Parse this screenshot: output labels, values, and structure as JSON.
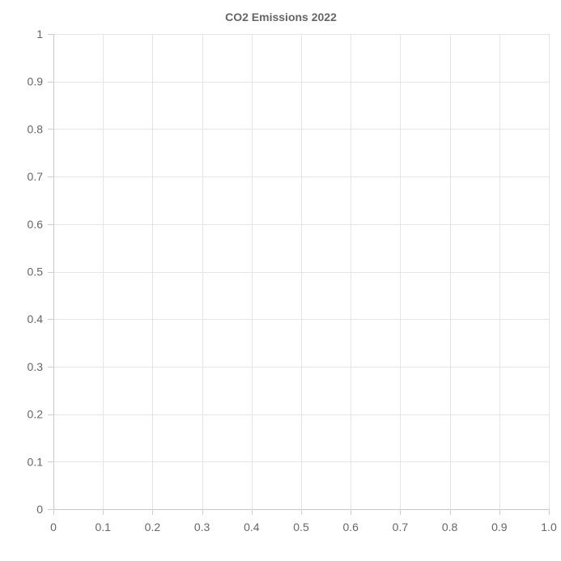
{
  "chart_data": {
    "type": "scatter",
    "title": "CO2 Emissions 2022",
    "xlabel": "",
    "ylabel": "",
    "xlim": [
      0,
      1
    ],
    "ylim": [
      0,
      1
    ],
    "x_ticks": [
      "0",
      "0.1",
      "0.2",
      "0.3",
      "0.4",
      "0.5",
      "0.6",
      "0.7",
      "0.8",
      "0.9",
      "1.0"
    ],
    "y_ticks": [
      "0",
      "0.1",
      "0.2",
      "0.3",
      "0.4",
      "0.5",
      "0.6",
      "0.7",
      "0.8",
      "0.9",
      "1"
    ],
    "grid": true,
    "legend": "none",
    "series": []
  }
}
